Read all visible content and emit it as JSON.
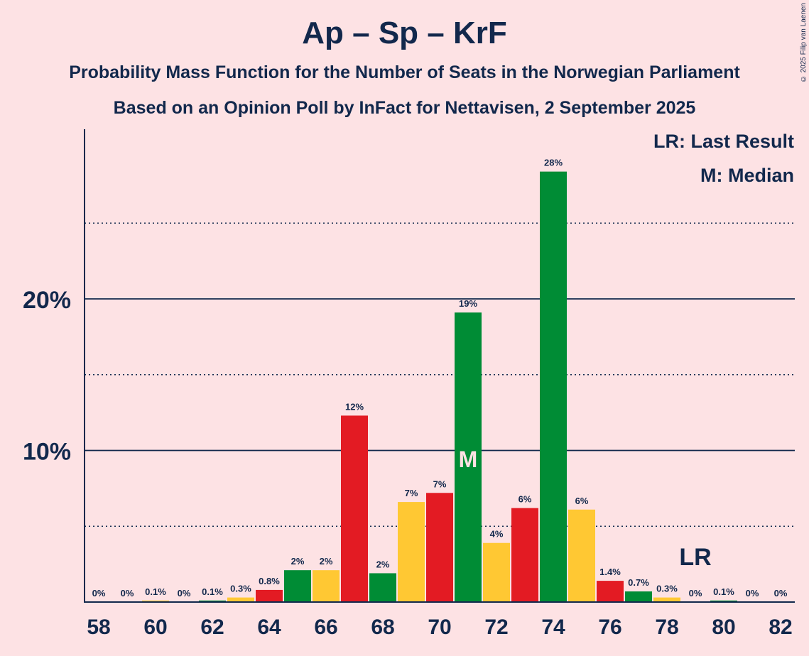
{
  "chart_data": {
    "type": "bar",
    "title": "Ap – Sp – KrF",
    "subtitle_1": "Probability Mass Function for the Number of Seats in the Norwegian Parliament",
    "subtitle_2": "Based on an Opinion Poll by InFact for Nettavisen, 2 September 2025",
    "copyright": "© 2025 Filip van Laenen",
    "legend": [
      "LR: Last Result",
      "M: Median"
    ],
    "x": [
      58,
      59,
      60,
      61,
      62,
      63,
      64,
      65,
      66,
      67,
      68,
      69,
      70,
      71,
      72,
      73,
      74,
      75,
      76,
      77,
      78,
      79,
      80,
      81,
      82
    ],
    "values": [
      0,
      0,
      0.1,
      0,
      0.1,
      0.3,
      0.8,
      2.1,
      2.1,
      12.3,
      1.9,
      6.6,
      7.2,
      19.1,
      3.9,
      6.2,
      28.4,
      6.1,
      1.4,
      0.7,
      0.3,
      0,
      0.1,
      0,
      0
    ],
    "labels": [
      "0%",
      "0%",
      "0.1%",
      "0%",
      "0.1%",
      "0.3%",
      "0.8%",
      "2%",
      "2%",
      "12%",
      "2%",
      "7%",
      "7%",
      "19%",
      "4%",
      "6%",
      "28%",
      "6%",
      "1.4%",
      "0.7%",
      "0.3%",
      "0%",
      "0.1%",
      "0%",
      "0%"
    ],
    "x_tick_labels": [
      "58",
      "60",
      "62",
      "64",
      "66",
      "68",
      "70",
      "72",
      "74",
      "76",
      "78",
      "80",
      "82"
    ],
    "y_tick_labels": [
      "10%",
      "20%"
    ],
    "ylim": [
      0,
      31
    ],
    "median": {
      "x": 71,
      "label": "M"
    },
    "last_result": {
      "x": 79,
      "label": "LR"
    },
    "colors": {
      "red": "#E31B23",
      "green": "#008C35",
      "yellow": "#FFC833",
      "axis": "#12284C",
      "background": "#FDE2E4"
    },
    "color_cycle": [
      "red",
      "green",
      "yellow"
    ]
  }
}
